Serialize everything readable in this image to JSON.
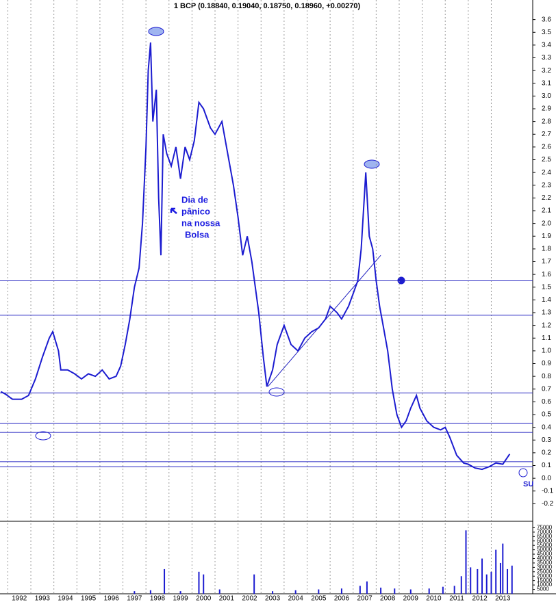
{
  "chart_data": {
    "type": "line",
    "title": "1 BCP (0.18840, 0.19040, 0.18750, 0.18960, +0.00270)",
    "annotation": [
      "Dia de",
      "pânico",
      "na nossa",
      "Bolsa"
    ],
    "marker_text": "SU",
    "xlim": [
      1991.66,
      2014.8
    ],
    "xticks": [
      1992,
      1993,
      1994,
      1995,
      1996,
      1997,
      1998,
      1999,
      2000,
      2001,
      2002,
      2003,
      2004,
      2005,
      2006,
      2007,
      2008,
      2009,
      2010,
      2011,
      2012,
      2013
    ],
    "ylim": [
      -0.3,
      3.7
    ],
    "yticks": [
      {
        "value": -0.2,
        "label": "-0.2"
      },
      {
        "value": -0.1,
        "label": "-0.1"
      },
      {
        "value": 0,
        "label": "0.0"
      },
      0.1,
      0.2,
      0.3,
      0.4,
      0.5,
      0.6,
      0.7,
      0.8,
      0.9,
      {
        "value": 1,
        "label": "1.0"
      },
      1.1,
      1.2,
      1.3,
      1.4,
      1.5,
      1.6,
      1.7,
      1.8,
      1.9,
      {
        "value": 2,
        "label": "2.0"
      },
      2.1,
      2.2,
      2.3,
      2.4,
      2.5,
      2.6,
      2.7,
      2.8,
      2.9,
      {
        "value": 3,
        "label": "3.0"
      },
      3.1,
      3.2,
      3.3,
      3.4,
      3.5,
      3.6
    ],
    "grid": true,
    "hlines": [
      1.55,
      1.28,
      0.67,
      0.43,
      0.36,
      0.13,
      0.09
    ],
    "trendline": {
      "x": [
        2003.3,
        2008.2
      ],
      "y": [
        0.72,
        1.75
      ]
    },
    "series": [
      {
        "name": "BCP",
        "color": "#1c1cd0",
        "x": [
          1991.7,
          1991.9,
          1992.2,
          1992.6,
          1992.9,
          1993.2,
          1993.5,
          1993.8,
          1993.95,
          1994.2,
          1994.3,
          1994.6,
          1994.9,
          1995.2,
          1995.5,
          1995.8,
          1996.1,
          1996.4,
          1996.7,
          1996.9,
          1997.1,
          1997.3,
          1997.5,
          1997.7,
          1997.85,
          1998.0,
          1998.1,
          1998.2,
          1998.3,
          1998.45,
          1998.55,
          1998.65,
          1998.75,
          1998.9,
          1999.1,
          1999.3,
          1999.5,
          1999.7,
          1999.9,
          2000.1,
          2000.3,
          2000.5,
          2000.8,
          2001.0,
          2001.3,
          2001.5,
          2001.8,
          2002.0,
          2002.2,
          2002.4,
          2002.6,
          2002.9,
          2003.1,
          2003.25,
          2003.5,
          2003.7,
          2004.0,
          2004.3,
          2004.6,
          2004.9,
          2005.2,
          2005.5,
          2005.8,
          2006.0,
          2006.3,
          2006.5,
          2006.8,
          2007.0,
          2007.2,
          2007.35,
          2007.55,
          2007.7,
          2007.85,
          2008.0,
          2008.15,
          2008.3,
          2008.5,
          2008.7,
          2008.9,
          2009.1,
          2009.3,
          2009.5,
          2009.75,
          2009.9,
          2010.2,
          2010.5,
          2010.8,
          2011.0,
          2011.2,
          2011.5,
          2011.8,
          2012.0,
          2012.3,
          2012.6,
          2012.9,
          2013.2,
          2013.5,
          2013.8
        ],
        "values": [
          0.68,
          0.66,
          0.62,
          0.62,
          0.65,
          0.78,
          0.95,
          1.1,
          1.15,
          1.0,
          0.85,
          0.85,
          0.82,
          0.78,
          0.82,
          0.8,
          0.85,
          0.78,
          0.8,
          0.88,
          1.05,
          1.25,
          1.5,
          1.65,
          2.0,
          2.6,
          3.2,
          3.42,
          2.8,
          3.05,
          2.2,
          1.75,
          2.7,
          2.55,
          2.45,
          2.6,
          2.35,
          2.6,
          2.5,
          2.65,
          2.95,
          2.9,
          2.75,
          2.7,
          2.8,
          2.6,
          2.3,
          2.05,
          1.75,
          1.9,
          1.7,
          1.3,
          0.95,
          0.72,
          0.85,
          1.05,
          1.2,
          1.05,
          1.0,
          1.1,
          1.15,
          1.18,
          1.25,
          1.35,
          1.3,
          1.25,
          1.35,
          1.45,
          1.55,
          1.8,
          2.4,
          1.9,
          1.8,
          1.55,
          1.35,
          1.2,
          1.0,
          0.7,
          0.5,
          0.4,
          0.45,
          0.55,
          0.65,
          0.55,
          0.45,
          0.4,
          0.38,
          0.4,
          0.32,
          0.18,
          0.12,
          0.11,
          0.08,
          0.07,
          0.09,
          0.12,
          0.11,
          0.19
        ]
      }
    ],
    "volume": {
      "ylim": [
        0,
        80000
      ],
      "yticks": [
        5000,
        10000,
        15000,
        20000,
        25000,
        30000,
        35000,
        40000,
        45000,
        50000,
        55000,
        60000,
        65000,
        70000,
        75000
      ],
      "color": "#1c1cd0",
      "x": [
        1997.5,
        1998.2,
        1998.8,
        1999.5,
        2000.3,
        2000.5,
        2001.2,
        2002.7,
        2003.5,
        2004.5,
        2005.5,
        2006.5,
        2007.3,
        2007.6,
        2008.2,
        2008.8,
        2009.5,
        2010.3,
        2010.9,
        2011.4,
        2011.7,
        2011.9,
        2012.1,
        2012.4,
        2012.6,
        2012.8,
        2013.0,
        2013.2,
        2013.4,
        2013.5,
        2013.7,
        2013.9
      ],
      "values": [
        3000,
        4000,
        28000,
        3000,
        25000,
        22000,
        5000,
        22000,
        3000,
        4000,
        5000,
        6000,
        9000,
        14000,
        7000,
        6000,
        5000,
        6000,
        8000,
        9000,
        20000,
        72000,
        30000,
        28000,
        40000,
        22000,
        25000,
        50000,
        35000,
        57000,
        28000,
        32000
      ]
    }
  }
}
